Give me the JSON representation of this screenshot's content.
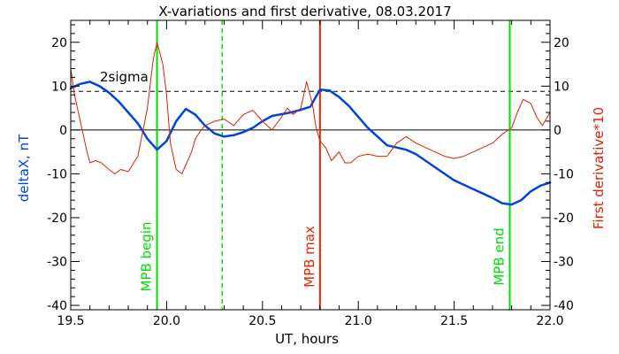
{
  "chart_data": {
    "type": "line",
    "title": "X-variations and first derivative, 08.03.2017",
    "xlabel": "UT, hours",
    "ylabel_left": "deltaX, nT",
    "ylabel_right": "First derivative*10",
    "xlim": [
      19.5,
      22.0
    ],
    "ylim": [
      -41,
      25
    ],
    "x_ticks": [
      19.5,
      20.0,
      20.5,
      21.0,
      21.5,
      22.0
    ],
    "x_tick_labels": [
      "19.5",
      "20.0",
      "20.5",
      "21.0",
      "21.5",
      "22.0"
    ],
    "y_ticks": [
      -40,
      -30,
      -20,
      -10,
      0,
      10,
      20
    ],
    "y_tick_labels": [
      "-40",
      "-30",
      "-20",
      "-10",
      "0",
      "10",
      "20"
    ],
    "threshold": {
      "value": 8.8,
      "label": "2sigma",
      "style": "dashed"
    },
    "zero_line": 0,
    "vertical_lines": [
      {
        "x": 19.95,
        "label": "MPB begin",
        "color": "#00dd00",
        "style": "solid"
      },
      {
        "x": 20.29,
        "label": "",
        "color": "#00dd00",
        "style": "dashed"
      },
      {
        "x": 20.8,
        "label": "MPB max",
        "color": "#ee2200",
        "style": "solid"
      },
      {
        "x": 21.79,
        "label": "MPB end",
        "color": "#00dd00",
        "style": "solid"
      }
    ],
    "series": [
      {
        "color": "#0044dd",
        "width": 2.5,
        "x": [
          19.5,
          19.55,
          19.6,
          19.65,
          19.7,
          19.75,
          19.8,
          19.85,
          19.9,
          19.95,
          20.0,
          20.05,
          20.1,
          20.15,
          20.2,
          20.25,
          20.3,
          20.35,
          20.4,
          20.45,
          20.5,
          20.55,
          20.6,
          20.65,
          20.7,
          20.75,
          20.8,
          20.85,
          20.9,
          20.95,
          21.0,
          21.05,
          21.1,
          21.15,
          21.2,
          21.25,
          21.3,
          21.35,
          21.4,
          21.45,
          21.5,
          21.55,
          21.6,
          21.65,
          21.7,
          21.75,
          21.8,
          21.85,
          21.9,
          21.95,
          22.0
        ],
        "y": [
          9.5,
          10.5,
          11,
          10,
          8.5,
          6.5,
          4,
          1.5,
          -2,
          -4.5,
          -2.5,
          2,
          4.8,
          3.5,
          1,
          -0.8,
          -1.5,
          -1.2,
          -0.5,
          0.5,
          2,
          3.2,
          3.6,
          4,
          4.6,
          5.3,
          9.2,
          9,
          7.5,
          5.5,
          3,
          0.5,
          -1.5,
          -3.5,
          -4,
          -4.5,
          -5.5,
          -7,
          -8.5,
          -10,
          -11.5,
          -12.5,
          -13.5,
          -14.5,
          -15.5,
          -16.7,
          -17,
          -16,
          -14,
          -12.7,
          -12
        ]
      },
      {
        "color": "#dd2200",
        "width": 1,
        "x": [
          19.5,
          19.52,
          19.55,
          19.58,
          19.6,
          19.63,
          19.66,
          19.7,
          19.73,
          19.76,
          19.8,
          19.85,
          19.9,
          19.93,
          19.95,
          19.98,
          20.0,
          20.02,
          20.05,
          20.08,
          20.1,
          20.13,
          20.15,
          20.18,
          20.2,
          20.25,
          20.3,
          20.35,
          20.4,
          20.45,
          20.5,
          20.55,
          20.6,
          20.63,
          20.66,
          20.7,
          20.73,
          20.76,
          20.78,
          20.8,
          20.83,
          20.86,
          20.9,
          20.93,
          20.96,
          21.0,
          21.05,
          21.1,
          21.15,
          21.2,
          21.25,
          21.3,
          21.35,
          21.4,
          21.45,
          21.5,
          21.55,
          21.6,
          21.65,
          21.7,
          21.75,
          21.8,
          21.83,
          21.86,
          21.9,
          21.93,
          21.96,
          22.0
        ],
        "y": [
          14,
          8,
          2,
          -4,
          -7.5,
          -7,
          -7.5,
          -9,
          -10,
          -9,
          -9.5,
          -6,
          5,
          16,
          20,
          15,
          8,
          -3,
          -9,
          -10,
          -8,
          -5,
          -2,
          0,
          1,
          2,
          2.5,
          1,
          3.5,
          4.5,
          2,
          0,
          3,
          5,
          3.5,
          5,
          11,
          6,
          0.5,
          -2.5,
          -4,
          -7,
          -5,
          -7.5,
          -7.5,
          -6,
          -5.5,
          -6,
          -6,
          -3,
          -1.5,
          -3,
          -4,
          -5,
          -6,
          -6.5,
          -6,
          -5,
          -4,
          -3,
          -1,
          0.5,
          4,
          7,
          6,
          3,
          1,
          4
        ]
      }
    ],
    "grid": false
  }
}
